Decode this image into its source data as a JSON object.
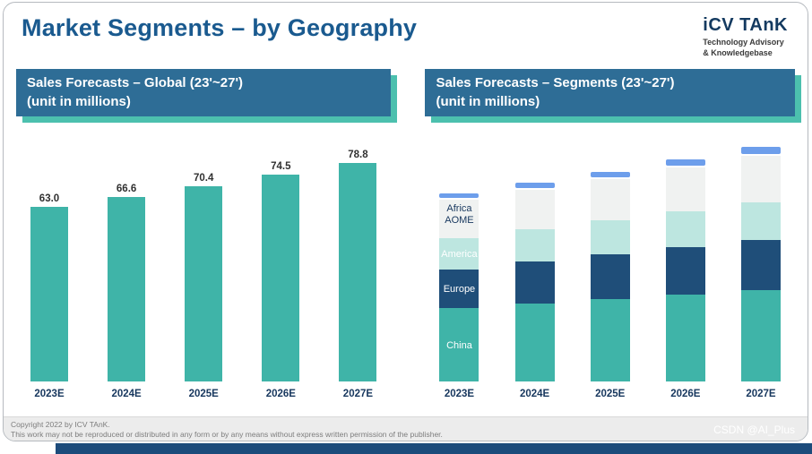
{
  "header": {
    "title": "Market Segments – by Geography",
    "logo": {
      "name": "iCV TAnK",
      "subtitle_line1": "Technology Advisory",
      "subtitle_line2": "& Knowledgebase"
    }
  },
  "panels": {
    "global": {
      "banner_line1": "Sales Forecasts – Global (23'~27')",
      "banner_line2": "(unit in millions)"
    },
    "segments": {
      "banner_line1": "Sales Forecasts – Segments  (23'~27')",
      "banner_line2": "(unit in millions)"
    }
  },
  "chart_data": [
    {
      "type": "bar",
      "title": "Sales Forecasts – Global (23'~27') (unit in millions)",
      "categories": [
        "2023E",
        "2024E",
        "2025E",
        "2026E",
        "2027E"
      ],
      "values": [
        63.0,
        66.6,
        70.4,
        74.5,
        78.8
      ],
      "value_labels": [
        "63.0",
        "66.6",
        "70.4",
        "74.5",
        "78.8"
      ],
      "bar_color": "#3fb4a8",
      "xlabel": "",
      "ylabel": "unit in millions",
      "ylim": [
        0,
        80
      ],
      "grid": false,
      "legend": false
    },
    {
      "type": "bar",
      "stacked": true,
      "title": "Sales Forecasts – Segments (23'~27') (unit in millions)",
      "categories": [
        "2023E",
        "2024E",
        "2025E",
        "2026E",
        "2027E"
      ],
      "series": [
        {
          "name": "China",
          "color": "#3fb4a8",
          "text_color": "#ffffff",
          "values": [
            25.0,
            26.5,
            28.0,
            29.5,
            31.0
          ]
        },
        {
          "name": "Europe",
          "color": "#1f4e79",
          "text_color": "#ffffff",
          "values": [
            13.0,
            14.0,
            15.0,
            16.0,
            17.0
          ]
        },
        {
          "name": "America",
          "color": "#bde6e0",
          "text_color": "#ffffff",
          "values": [
            10.5,
            11.0,
            11.5,
            12.0,
            12.5
          ]
        },
        {
          "name": "AOME",
          "color": "#f0f2f1",
          "text_color": "#17375e",
          "values": [
            13.0,
            13.5,
            14.0,
            15.0,
            16.0
          ]
        },
        {
          "name": "Africa",
          "color": "#6d9eeb",
          "text_color": "#17375e",
          "values": [
            1.5,
            1.6,
            1.9,
            2.0,
            2.3
          ]
        }
      ],
      "totals": [
        63.0,
        66.6,
        70.4,
        74.5,
        78.8
      ],
      "xlabel": "",
      "ylabel": "unit in millions",
      "ylim": [
        0,
        80
      ],
      "grid": false,
      "legend": "labels-on-first-bar"
    }
  ],
  "footer": {
    "line1": "Copyright  2022 by ICV TAnK.",
    "line2": "This work may not be reproduced or distributed in any form or by any means without express written permission of the publisher.",
    "watermark": "CSDN @AI_Plus"
  },
  "colors": {
    "title_navy": "#1a5a8f",
    "banner_blue": "#2e6d96",
    "banner_shadow_teal": "#4cc0ae",
    "bar_teal": "#3fb4a8",
    "europe_navy": "#1f4e79",
    "america_pale_teal": "#bde6e0",
    "aome_light_gray": "#f0f2f1",
    "africa_blue": "#6d9eeb",
    "bottom_bar_navy": "#1c4b7b",
    "footer_gray": "#ececec"
  }
}
